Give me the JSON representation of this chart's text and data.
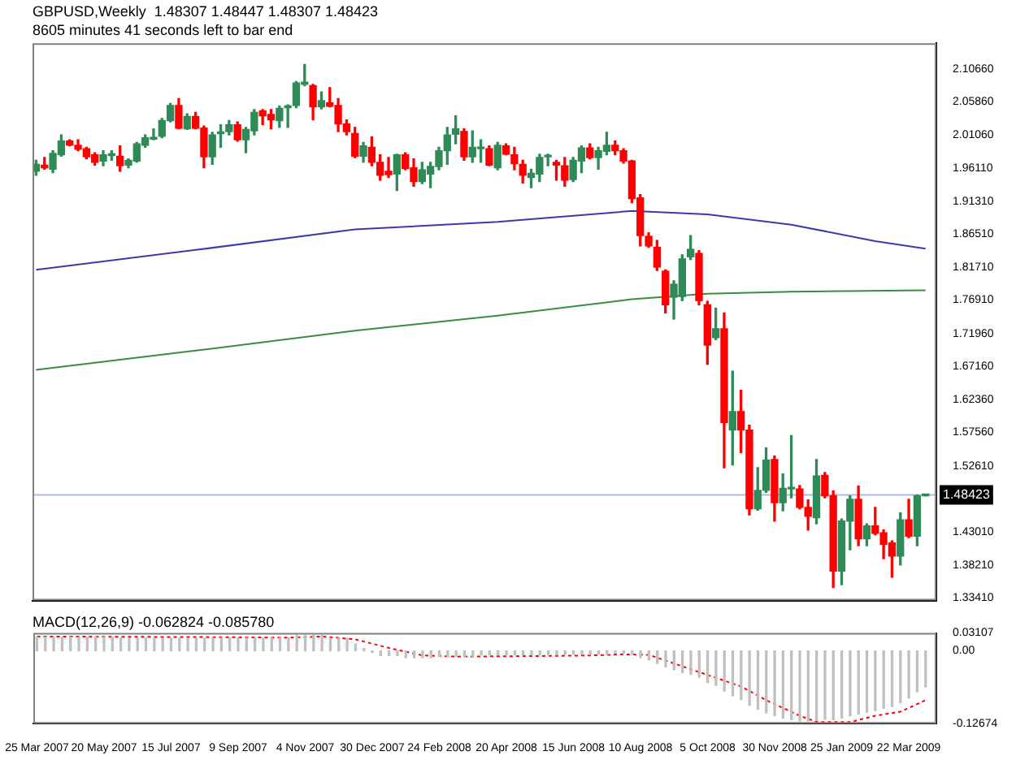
{
  "chart_data": [
    {
      "type": "candlestick",
      "title": "GBPUSD,Weekly  1.48307 1.48447 1.48307 1.48423",
      "subtitle": "8605 minutes 41 seconds left to bar end",
      "x": [
        "2007-03-25",
        "2007-04-01",
        "2007-04-08",
        "2007-04-15",
        "2007-04-22",
        "2007-04-29",
        "2007-05-06",
        "2007-05-13",
        "2007-05-20",
        "2007-05-27",
        "2007-06-03",
        "2007-06-10",
        "2007-06-17",
        "2007-06-24",
        "2007-07-01",
        "2007-07-08",
        "2007-07-15",
        "2007-07-22",
        "2007-07-29",
        "2007-08-05",
        "2007-08-12",
        "2007-08-19",
        "2007-08-26",
        "2007-09-02",
        "2007-09-09",
        "2007-09-16",
        "2007-09-23",
        "2007-09-30",
        "2007-10-07",
        "2007-10-14",
        "2007-10-21",
        "2007-10-28",
        "2007-11-04",
        "2007-11-11",
        "2007-11-18",
        "2007-11-25",
        "2007-12-02",
        "2007-12-09",
        "2007-12-16",
        "2007-12-23",
        "2007-12-30",
        "2008-01-06",
        "2008-01-13",
        "2008-01-20",
        "2008-01-27",
        "2008-02-03",
        "2008-02-10",
        "2008-02-17",
        "2008-02-24",
        "2008-03-02",
        "2008-03-09",
        "2008-03-16",
        "2008-03-23",
        "2008-03-30",
        "2008-04-06",
        "2008-04-13",
        "2008-04-20",
        "2008-04-27",
        "2008-05-04",
        "2008-05-11",
        "2008-05-18",
        "2008-05-25",
        "2008-06-01",
        "2008-06-08",
        "2008-06-15",
        "2008-06-22",
        "2008-06-29",
        "2008-07-06",
        "2008-07-13",
        "2008-07-20",
        "2008-07-27",
        "2008-08-03",
        "2008-08-10",
        "2008-08-17",
        "2008-08-24",
        "2008-08-31",
        "2008-09-07",
        "2008-09-14",
        "2008-09-21",
        "2008-09-28",
        "2008-10-05",
        "2008-10-12",
        "2008-10-19",
        "2008-10-26",
        "2008-11-02",
        "2008-11-09",
        "2008-11-16",
        "2008-11-23",
        "2008-11-30",
        "2008-12-07",
        "2008-12-14",
        "2008-12-21",
        "2008-12-28",
        "2009-01-04",
        "2009-01-11",
        "2009-01-18",
        "2009-01-25",
        "2009-02-01",
        "2009-02-08",
        "2009-02-15",
        "2009-02-22",
        "2009-03-01",
        "2009-03-08",
        "2009-03-15",
        "2009-03-22",
        "2009-03-29",
        "2009-04-05"
      ],
      "ohlc": [
        [
          1.957,
          1.973,
          1.951,
          1.967
        ],
        [
          1.966,
          1.977,
          1.96,
          1.962
        ],
        [
          1.96,
          1.987,
          1.955,
          1.983
        ],
        [
          1.981,
          2.01,
          1.979,
          2.001
        ],
        [
          2.001,
          2.003,
          1.994,
          1.995
        ],
        [
          1.995,
          2.003,
          1.987,
          1.989
        ],
        [
          1.99,
          1.992,
          1.975,
          1.978
        ],
        [
          1.981,
          1.984,
          1.966,
          1.97
        ],
        [
          1.972,
          1.987,
          1.965,
          1.981
        ],
        [
          1.98,
          1.987,
          1.973,
          1.981
        ],
        [
          1.979,
          1.994,
          1.957,
          1.965
        ],
        [
          1.966,
          1.975,
          1.962,
          1.973
        ],
        [
          1.972,
          1.999,
          1.97,
          1.997
        ],
        [
          1.995,
          2.01,
          1.992,
          2.006
        ],
        [
          2.004,
          2.019,
          2.003,
          2.006
        ],
        [
          2.008,
          2.034,
          2.006,
          2.031
        ],
        [
          2.031,
          2.056,
          2.029,
          2.053
        ],
        [
          2.053,
          2.063,
          2.019,
          2.02
        ],
        [
          2.019,
          2.041,
          2.018,
          2.037
        ],
        [
          2.037,
          2.043,
          2.019,
          2.02
        ],
        [
          2.02,
          2.023,
          1.962,
          1.978
        ],
        [
          1.978,
          2.014,
          1.967,
          2.01
        ],
        [
          2.012,
          2.025,
          1.992,
          2.013
        ],
        [
          2.015,
          2.031,
          2.01,
          2.025
        ],
        [
          2.025,
          2.029,
          2.001,
          2.003
        ],
        [
          2.003,
          2.021,
          1.984,
          2.018
        ],
        [
          2.016,
          2.047,
          2.01,
          2.043
        ],
        [
          2.045,
          2.047,
          2.025,
          2.038
        ],
        [
          2.04,
          2.047,
          2.019,
          2.032
        ],
        [
          2.031,
          2.052,
          2.021,
          2.049
        ],
        [
          2.05,
          2.054,
          2.021,
          2.051
        ],
        [
          2.053,
          2.088,
          2.05,
          2.086
        ],
        [
          2.084,
          2.113,
          2.082,
          2.087
        ],
        [
          2.082,
          2.084,
          2.032,
          2.051
        ],
        [
          2.051,
          2.073,
          2.048,
          2.06
        ],
        [
          2.057,
          2.079,
          2.051,
          2.052
        ],
        [
          2.053,
          2.063,
          2.015,
          2.026
        ],
        [
          2.026,
          2.032,
          2.01,
          2.015
        ],
        [
          2.012,
          2.021,
          1.977,
          1.979
        ],
        [
          1.979,
          1.999,
          1.97,
          1.994
        ],
        [
          1.992,
          2.007,
          1.965,
          1.97
        ],
        [
          1.97,
          1.981,
          1.944,
          1.951
        ],
        [
          1.957,
          1.977,
          1.948,
          1.952
        ],
        [
          1.953,
          1.982,
          1.929,
          1.981
        ],
        [
          1.981,
          1.984,
          1.959,
          1.961
        ],
        [
          1.962,
          1.975,
          1.935,
          1.942
        ],
        [
          1.942,
          1.97,
          1.939,
          1.959
        ],
        [
          1.953,
          1.97,
          1.933,
          1.964
        ],
        [
          1.964,
          1.992,
          1.959,
          1.987
        ],
        [
          1.987,
          2.021,
          1.967,
          2.01
        ],
        [
          2.011,
          2.038,
          1.997,
          2.019
        ],
        [
          2.015,
          2.019,
          1.973,
          1.978
        ],
        [
          1.978,
          2.016,
          1.97,
          1.992
        ],
        [
          1.99,
          2.003,
          1.97,
          1.991
        ],
        [
          1.99,
          1.994,
          1.965,
          1.966
        ],
        [
          1.962,
          1.999,
          1.959,
          1.995
        ],
        [
          1.994,
          1.997,
          1.981,
          1.982
        ],
        [
          1.981,
          1.992,
          1.959,
          1.968
        ],
        [
          1.967,
          1.973,
          1.94,
          1.951
        ],
        [
          1.948,
          1.96,
          1.933,
          1.954
        ],
        [
          1.953,
          1.982,
          1.942,
          1.977
        ],
        [
          1.978,
          1.982,
          1.965,
          1.979
        ],
        [
          1.97,
          1.973,
          1.944,
          1.966
        ],
        [
          1.965,
          1.977,
          1.935,
          1.944
        ],
        [
          1.945,
          1.977,
          1.942,
          1.973
        ],
        [
          1.972,
          1.994,
          1.955,
          1.991
        ],
        [
          1.991,
          1.997,
          1.975,
          1.977
        ],
        [
          1.977,
          1.992,
          1.96,
          1.987
        ],
        [
          1.986,
          2.014,
          1.981,
          1.995
        ],
        [
          1.995,
          2.001,
          1.981,
          1.987
        ],
        [
          1.987,
          1.99,
          1.969,
          1.972
        ],
        [
          1.972,
          1.973,
          1.911,
          1.917
        ],
        [
          1.918,
          1.923,
          1.848,
          1.863
        ],
        [
          1.862,
          1.867,
          1.846,
          1.848
        ],
        [
          1.846,
          1.856,
          1.812,
          1.817
        ],
        [
          1.811,
          1.813,
          1.75,
          1.762
        ],
        [
          1.773,
          1.797,
          1.741,
          1.792
        ],
        [
          1.774,
          1.835,
          1.768,
          1.829
        ],
        [
          1.832,
          1.863,
          1.828,
          1.843
        ],
        [
          1.837,
          1.841,
          1.762,
          1.768
        ],
        [
          1.762,
          1.767,
          1.675,
          1.703
        ],
        [
          1.714,
          1.757,
          1.711,
          1.727
        ],
        [
          1.727,
          1.75,
          1.524,
          1.59
        ],
        [
          1.579,
          1.665,
          1.528,
          1.606
        ],
        [
          1.606,
          1.637,
          1.546,
          1.579
        ],
        [
          1.579,
          1.586,
          1.455,
          1.464
        ],
        [
          1.464,
          1.524,
          1.462,
          1.491
        ],
        [
          1.491,
          1.553,
          1.488,
          1.535
        ],
        [
          1.536,
          1.541,
          1.446,
          1.473
        ],
        [
          1.473,
          1.515,
          1.461,
          1.494
        ],
        [
          1.493,
          1.571,
          1.48,
          1.494
        ],
        [
          1.493,
          1.498,
          1.464,
          1.466
        ],
        [
          1.466,
          1.477,
          1.433,
          1.453
        ],
        [
          1.451,
          1.536,
          1.442,
          1.512
        ],
        [
          1.513,
          1.517,
          1.48,
          1.483
        ],
        [
          1.483,
          1.49,
          1.349,
          1.373
        ],
        [
          1.373,
          1.449,
          1.353,
          1.446
        ],
        [
          1.446,
          1.483,
          1.404,
          1.478
        ],
        [
          1.478,
          1.497,
          1.41,
          1.42
        ],
        [
          1.42,
          1.442,
          1.41,
          1.439
        ],
        [
          1.439,
          1.466,
          1.426,
          1.428
        ],
        [
          1.429,
          1.433,
          1.391,
          1.412
        ],
        [
          1.414,
          1.417,
          1.364,
          1.395
        ],
        [
          1.395,
          1.458,
          1.382,
          1.448
        ],
        [
          1.448,
          1.478,
          1.422,
          1.424
        ],
        [
          1.424,
          1.484,
          1.41,
          1.483
        ],
        [
          1.48307,
          1.48447,
          1.48307,
          1.48423
        ]
      ],
      "colors": [
        "#2e8b57",
        "#ff0000",
        "#2e8b57",
        "#2e8b57",
        "#ff0000",
        "#ff0000",
        "#ff0000",
        "#ff0000",
        "#2e8b57",
        "#2e8b57",
        "#ff0000",
        "#2e8b57",
        "#2e8b57",
        "#2e8b57",
        "#2e8b57",
        "#2e8b57",
        "#2e8b57",
        "#ff0000",
        "#2e8b57",
        "#ff0000",
        "#ff0000",
        "#2e8b57",
        "#2e8b57",
        "#2e8b57",
        "#ff0000",
        "#2e8b57",
        "#2e8b57",
        "#ff0000",
        "#ff0000",
        "#2e8b57",
        "#2e8b57",
        "#2e8b57",
        "#2e8b57",
        "#ff0000",
        "#2e8b57",
        "#ff0000",
        "#ff0000",
        "#ff0000",
        "#ff0000",
        "#2e8b57",
        "#ff0000",
        "#ff0000",
        "#ff0000",
        "#2e8b57",
        "#ff0000",
        "#ff0000",
        "#2e8b57",
        "#2e8b57",
        "#2e8b57",
        "#2e8b57",
        "#2e8b57",
        "#ff0000",
        "#2e8b57",
        "#2e8b57",
        "#ff0000",
        "#2e8b57",
        "#ff0000",
        "#ff0000",
        "#ff0000",
        "#2e8b57",
        "#2e8b57",
        "#2e8b57",
        "#ff0000",
        "#ff0000",
        "#2e8b57",
        "#2e8b57",
        "#ff0000",
        "#2e8b57",
        "#2e8b57",
        "#ff0000",
        "#ff0000",
        "#ff0000",
        "#ff0000",
        "#ff0000",
        "#ff0000",
        "#ff0000",
        "#2e8b57",
        "#2e8b57",
        "#2e8b57",
        "#ff0000",
        "#ff0000",
        "#2e8b57",
        "#ff0000",
        "#2e8b57",
        "#ff0000",
        "#ff0000",
        "#2e8b57",
        "#2e8b57",
        "#ff0000",
        "#2e8b57",
        "#2e8b57",
        "#ff0000",
        "#ff0000",
        "#2e8b57",
        "#ff0000",
        "#ff0000",
        "#2e8b57",
        "#2e8b57",
        "#ff0000",
        "#2e8b57",
        "#ff0000",
        "#ff0000",
        "#ff0000",
        "#2e8b57",
        "#ff0000",
        "#2e8b57",
        "#2e8b57"
      ],
      "series": [
        {
          "type": "line",
          "color": "#3a3aa8",
          "x": [
            "2007-03-25",
            "2007-08-05",
            "2007-12-16",
            "2008-04-13",
            "2008-08-03",
            "2008-10-05",
            "2008-12-14",
            "2009-02-22",
            "2009-04-05"
          ],
          "values": [
            1.813,
            1.842,
            1.872,
            1.883,
            1.899,
            1.894,
            1.879,
            1.855,
            1.844
          ]
        },
        {
          "type": "line",
          "color": "#3c8c3c",
          "x": [
            "2007-03-25",
            "2007-08-05",
            "2007-12-16",
            "2008-04-13",
            "2008-08-03",
            "2008-10-05",
            "2008-12-14",
            "2009-04-05"
          ],
          "values": [
            1.667,
            1.695,
            1.724,
            1.746,
            1.77,
            1.778,
            1.781,
            1.783
          ]
        }
      ],
      "ref_lines": [
        {
          "axis": "y",
          "value": 1.48423,
          "label": "1.48423",
          "color": "#b0b8e0"
        }
      ],
      "xlim": [
        "2007-03-22",
        "2009-04-14"
      ],
      "ylim": [
        1.33,
        2.144
      ],
      "yticks": [
        {
          "value": 2.1066,
          "label": "2.10660"
        },
        {
          "value": 2.0586,
          "label": "2.05860"
        },
        {
          "value": 2.0106,
          "label": "2.01060"
        },
        {
          "value": 1.9611,
          "label": "1.96110"
        },
        {
          "value": 1.9131,
          "label": "1.91310"
        },
        {
          "value": 1.8651,
          "label": "1.86510"
        },
        {
          "value": 1.8171,
          "label": "1.81710"
        },
        {
          "value": 1.7691,
          "label": "1.76910"
        },
        {
          "value": 1.7196,
          "label": "1.71960"
        },
        {
          "value": 1.6716,
          "label": "1.67160"
        },
        {
          "value": 1.6236,
          "label": "1.62360"
        },
        {
          "value": 1.5756,
          "label": "1.57560"
        },
        {
          "value": 1.5261,
          "label": "1.52610"
        },
        {
          "value": 1.4301,
          "label": "1.43010"
        },
        {
          "value": 1.3821,
          "label": "1.38210"
        },
        {
          "value": 1.3341,
          "label": "1.33410"
        }
      ],
      "tick_labels": "y"
    },
    {
      "type": "bar",
      "title": "MACD(12,26,9) -0.062824 -0.085780",
      "x": [
        "2007-03-25",
        "2007-04-01",
        "2007-04-08",
        "2007-04-15",
        "2007-04-22",
        "2007-04-29",
        "2007-05-06",
        "2007-05-13",
        "2007-05-20",
        "2007-05-27",
        "2007-06-03",
        "2007-06-10",
        "2007-06-17",
        "2007-06-24",
        "2007-07-01",
        "2007-07-08",
        "2007-07-15",
        "2007-07-22",
        "2007-07-29",
        "2007-08-05",
        "2007-08-12",
        "2007-08-19",
        "2007-08-26",
        "2007-09-02",
        "2007-09-09",
        "2007-09-16",
        "2007-09-23",
        "2007-09-30",
        "2007-10-07",
        "2007-10-14",
        "2007-10-21",
        "2007-10-28",
        "2007-11-04",
        "2007-11-11",
        "2007-11-18",
        "2007-11-25",
        "2007-12-02",
        "2007-12-09",
        "2007-12-16",
        "2007-12-23",
        "2007-12-30",
        "2008-01-06",
        "2008-01-13",
        "2008-01-20",
        "2008-01-27",
        "2008-02-03",
        "2008-02-10",
        "2008-02-17",
        "2008-02-24",
        "2008-03-02",
        "2008-03-09",
        "2008-03-16",
        "2008-03-23",
        "2008-03-30",
        "2008-04-06",
        "2008-04-13",
        "2008-04-20",
        "2008-04-27",
        "2008-05-04",
        "2008-05-11",
        "2008-05-18",
        "2008-05-25",
        "2008-06-01",
        "2008-06-08",
        "2008-06-15",
        "2008-06-22",
        "2008-06-29",
        "2008-07-06",
        "2008-07-13",
        "2008-07-20",
        "2008-07-27",
        "2008-08-03",
        "2008-08-10",
        "2008-08-17",
        "2008-08-24",
        "2008-08-31",
        "2008-09-07",
        "2008-09-14",
        "2008-09-21",
        "2008-09-28",
        "2008-10-05",
        "2008-10-12",
        "2008-10-19",
        "2008-10-26",
        "2008-11-02",
        "2008-11-09",
        "2008-11-16",
        "2008-11-23",
        "2008-11-30",
        "2008-12-07",
        "2008-12-14",
        "2008-12-21",
        "2008-12-28",
        "2009-01-04",
        "2009-01-11",
        "2009-01-18",
        "2009-01-25",
        "2009-02-01",
        "2009-02-08",
        "2009-02-15",
        "2009-02-22",
        "2009-03-01",
        "2009-03-08",
        "2009-03-15",
        "2009-03-22",
        "2009-03-29",
        "2009-04-05"
      ],
      "series": [
        {
          "type": "bar",
          "color": "#c0c0c0",
          "values": [
            0.024,
            0.024,
            0.024,
            0.024,
            0.024,
            0.024,
            0.024,
            0.024,
            0.024,
            0.024,
            0.022,
            0.022,
            0.022,
            0.022,
            0.022,
            0.022,
            0.022,
            0.022,
            0.022,
            0.022,
            0.022,
            0.023,
            0.023,
            0.023,
            0.023,
            0.023,
            0.023,
            0.023,
            0.023,
            0.023,
            0.023,
            0.027,
            0.027,
            0.027,
            0.027,
            0.022,
            0.022,
            0.022,
            0.012,
            0.004,
            -0.003,
            -0.008,
            -0.008,
            -0.008,
            -0.012,
            -0.012,
            -0.012,
            -0.012,
            -0.01,
            -0.01,
            -0.01,
            -0.01,
            -0.01,
            -0.007,
            -0.007,
            -0.007,
            -0.007,
            -0.007,
            -0.007,
            -0.007,
            -0.007,
            -0.007,
            -0.007,
            -0.006,
            -0.006,
            -0.006,
            -0.006,
            -0.006,
            -0.006,
            -0.004,
            -0.004,
            -0.006,
            -0.012,
            -0.016,
            -0.022,
            -0.028,
            -0.033,
            -0.038,
            -0.041,
            -0.046,
            -0.055,
            -0.06,
            -0.07,
            -0.078,
            -0.085,
            -0.095,
            -0.102,
            -0.108,
            -0.113,
            -0.117,
            -0.12,
            -0.122,
            -0.122,
            -0.121,
            -0.119,
            -0.12,
            -0.117,
            -0.113,
            -0.11,
            -0.107,
            -0.104,
            -0.1,
            -0.097,
            -0.09,
            -0.082,
            -0.071,
            -0.063
          ]
        },
        {
          "type": "line",
          "color": "#ff0000",
          "line_style": "dotted",
          "x": [
            "2007-03-25",
            "2007-08-12",
            "2007-10-21",
            "2007-11-18",
            "2007-12-16",
            "2008-01-13",
            "2008-02-10",
            "2008-03-09",
            "2008-05-18",
            "2008-06-29",
            "2008-07-27",
            "2008-08-17",
            "2008-09-07",
            "2008-10-05",
            "2008-11-02",
            "2008-11-23",
            "2008-12-21",
            "2009-01-04",
            "2009-02-01",
            "2009-02-22",
            "2009-03-15",
            "2009-04-05"
          ],
          "values": [
            0.025,
            0.024,
            0.023,
            0.025,
            0.02,
            0.005,
            -0.008,
            -0.01,
            -0.009,
            -0.008,
            -0.006,
            -0.007,
            -0.022,
            -0.042,
            -0.062,
            -0.086,
            -0.113,
            -0.124,
            -0.124,
            -0.113,
            -0.106,
            -0.086
          ]
        }
      ],
      "xlim": [
        "2007-03-22",
        "2009-04-14"
      ],
      "ylim": [
        -0.12674,
        0.03107
      ],
      "yticks": [
        0.03107,
        {
          "value": 0,
          "label": "0.00"
        },
        -0.12674
      ],
      "xticks": [
        {
          "value": "2007-03-25",
          "label": "25 Mar 2007"
        },
        {
          "value": "2007-05-20",
          "label": "20 May 2007"
        },
        {
          "value": "2007-07-15",
          "label": "15 Jul 2007"
        },
        {
          "value": "2007-09-09",
          "label": "9 Sep 2007"
        },
        {
          "value": "2007-11-04",
          "label": "4 Nov 2007"
        },
        {
          "value": "2007-12-30",
          "label": "30 Dec 2007"
        },
        {
          "value": "2008-02-24",
          "label": "24 Feb 2008"
        },
        {
          "value": "2008-04-20",
          "label": "20 Apr 2008"
        },
        {
          "value": "2008-06-15",
          "label": "15 Jun 2008"
        },
        {
          "value": "2008-08-10",
          "label": "10 Aug 2008"
        },
        {
          "value": "2008-10-05",
          "label": "5 Oct 2008"
        },
        {
          "value": "2008-11-30",
          "label": "30 Nov 2008"
        },
        {
          "value": "2009-01-25",
          "label": "25 Jan 2009"
        },
        {
          "value": "2009-03-22",
          "label": "22 Mar 2009"
        }
      ]
    }
  ]
}
